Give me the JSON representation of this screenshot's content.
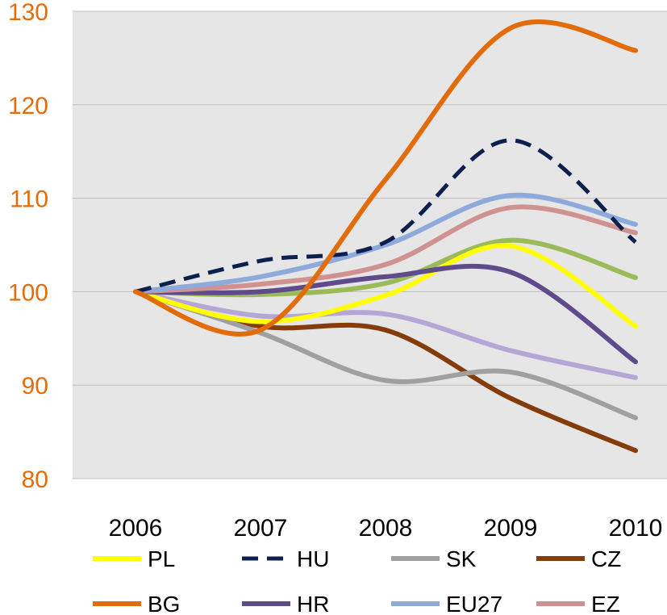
{
  "chart_data": {
    "type": "line",
    "title": "",
    "xlabel": "",
    "ylabel": "",
    "categories": [
      "2006",
      "2007",
      "2008",
      "2009",
      "2010"
    ],
    "ylim": [
      80,
      130
    ],
    "yticks": [
      80,
      90,
      100,
      110,
      120,
      130
    ],
    "grid": true,
    "legend_position": "bottom",
    "series": [
      {
        "name": "PL",
        "color": "#ffff00",
        "dash": false,
        "values": [
          100,
          96.8,
          99.6,
          104.9,
          96.3
        ]
      },
      {
        "name": "HU",
        "color": "#0d1f4d",
        "dash": true,
        "values": [
          100,
          103.3,
          105.3,
          116.2,
          105.3
        ]
      },
      {
        "name": "SK",
        "color": "#a0a0a0",
        "dash": false,
        "values": [
          100,
          95.6,
          90.5,
          91.4,
          86.5
        ]
      },
      {
        "name": "CZ",
        "color": "#843c0c",
        "dash": false,
        "values": [
          100,
          96.3,
          95.9,
          88.6,
          83.0
        ]
      },
      {
        "name": "BG",
        "color": "#e36c0a",
        "dash": false,
        "values": [
          100,
          95.9,
          112.0,
          128.2,
          125.8
        ]
      },
      {
        "name": "HR",
        "color": "#5f4b8b",
        "dash": false,
        "values": [
          100,
          100.0,
          101.6,
          102.1,
          92.5
        ]
      },
      {
        "name": "EU27",
        "color": "#8eaadb",
        "dash": false,
        "values": [
          100,
          101.6,
          105.0,
          110.3,
          107.2
        ]
      },
      {
        "name": "EZ",
        "color": "#d09290",
        "dash": false,
        "values": [
          100,
          100.8,
          102.9,
          109.0,
          106.3
        ]
      },
      {
        "name": "",
        "color": "#9bbb59",
        "dash": false,
        "values": [
          100,
          99.7,
          100.9,
          105.5,
          101.5
        ]
      },
      {
        "name": "",
        "color": "#b4a7d6",
        "dash": false,
        "values": [
          100,
          97.4,
          97.6,
          93.7,
          90.8
        ]
      }
    ]
  }
}
